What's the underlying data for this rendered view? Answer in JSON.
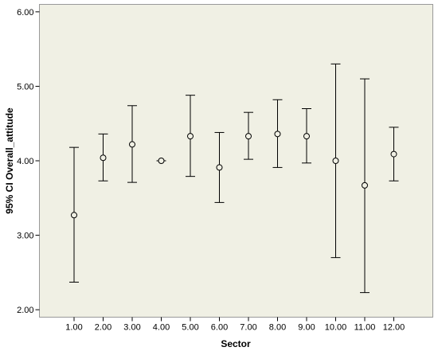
{
  "chart_data": {
    "type": "errorbar",
    "xlabel": "Sector",
    "ylabel": "95% CI Overall_attitude",
    "ylim": [
      1.9,
      6.1
    ],
    "yticks": [
      2.0,
      3.0,
      4.0,
      5.0,
      6.0
    ],
    "ytick_labels": [
      "2.00",
      "3.00",
      "4.00",
      "5.00",
      "6.00"
    ],
    "categories": [
      "1.00",
      "2.00",
      "3.00",
      "4.00",
      "5.00",
      "6.00",
      "7.00",
      "8.00",
      "9.00",
      "10.00",
      "11.00",
      "12.00"
    ],
    "means": [
      3.27,
      4.04,
      4.22,
      4.0,
      4.33,
      3.91,
      4.33,
      4.36,
      4.33,
      4.0,
      3.67,
      4.09
    ],
    "lower": [
      2.37,
      3.73,
      3.71,
      4.0,
      3.79,
      3.44,
      4.02,
      3.91,
      3.97,
      2.7,
      2.23,
      3.73
    ],
    "upper": [
      4.18,
      4.36,
      4.74,
      4.0,
      4.88,
      4.38,
      4.65,
      4.82,
      4.7,
      5.3,
      5.1,
      4.45
    ],
    "grid": false,
    "colors": {
      "background": "#ffffff",
      "plot_area": "#f0f0e4",
      "ink": "#000000",
      "frame": "#999999"
    }
  }
}
